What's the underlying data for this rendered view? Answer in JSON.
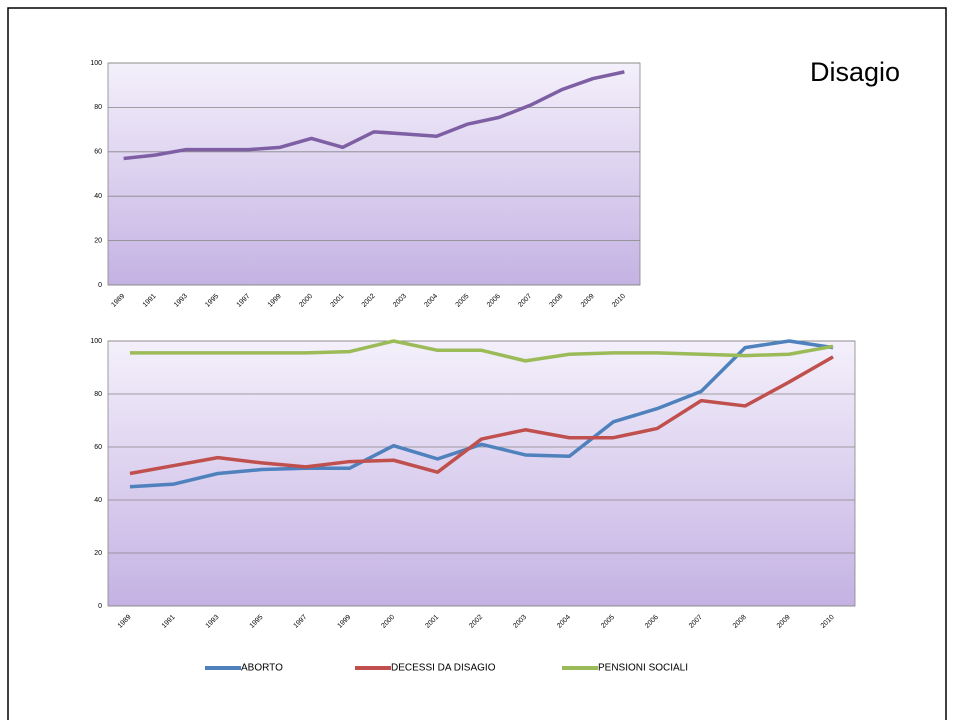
{
  "title": "Disagio",
  "chart_data": [
    {
      "type": "line",
      "categories": [
        "1989",
        "1991",
        "1993",
        "1995",
        "1997",
        "1999",
        "2000",
        "2001",
        "2002",
        "2003",
        "2004",
        "2005",
        "2006",
        "2007",
        "2008",
        "2009",
        "2010"
      ],
      "values": [
        57,
        58.5,
        61,
        61,
        61,
        62,
        66,
        62,
        69,
        68,
        67,
        72.5,
        75.5,
        81,
        88,
        93,
        96
      ],
      "color": "#7e5fa4",
      "ylim": [
        0,
        100
      ],
      "yticks": [
        0,
        20,
        40,
        60,
        80,
        100
      ],
      "grid": true
    },
    {
      "type": "line",
      "categories": [
        "1989",
        "1991",
        "1993",
        "1995",
        "1997",
        "1999",
        "2000",
        "2001",
        "2002",
        "2003",
        "2004",
        "2005",
        "2006",
        "2007",
        "2008",
        "2009",
        "2010"
      ],
      "series": [
        {
          "name": "ABORTO",
          "color": "#4f81bd",
          "values": [
            45,
            46,
            50,
            51.5,
            52,
            52,
            60.5,
            55.5,
            61,
            57,
            56.5,
            69.5,
            74.5,
            81,
            97.5,
            100,
            97.5
          ]
        },
        {
          "name": "DECESSI DA DISAGIO",
          "color": "#c0504d",
          "values": [
            50,
            53,
            56,
            54,
            52.5,
            54.5,
            55,
            50.5,
            63,
            66.5,
            63.5,
            63.5,
            67,
            77.5,
            75.5,
            84.5,
            94
          ]
        },
        {
          "name": "PENSIONI SOCIALI",
          "color": "#9bbb59",
          "values": [
            95.5,
            95.5,
            95.5,
            95.5,
            95.5,
            96,
            100,
            96.5,
            96.5,
            92.5,
            95,
            95.5,
            95.5,
            95,
            94.5,
            95,
            98
          ]
        }
      ],
      "ylim": [
        0,
        100
      ],
      "yticks": [
        0,
        20,
        40,
        60,
        80,
        100
      ],
      "grid": true,
      "legend": "bottom"
    }
  ]
}
